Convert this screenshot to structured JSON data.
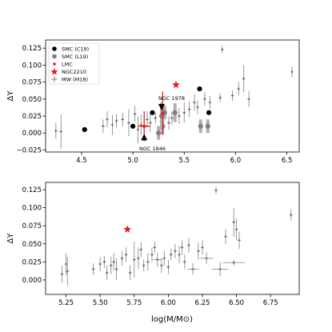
{
  "figure": {
    "background": "#ffffff",
    "colors": {
      "smc_c19": "#000000",
      "smc_l19": "#808080",
      "lmc": "#e41a1c",
      "ngc2210": "#e41a1c",
      "mw_m18": "#7f7f7f"
    }
  },
  "chart_data": [
    {
      "type": "scatter",
      "xlabel": "",
      "ylabel": "ΔY",
      "xlim": [
        4.15,
        6.62
      ],
      "ylim": [
        -0.028,
        0.137
      ],
      "xticks": [
        4.5,
        5.0,
        5.5,
        6.0,
        6.5
      ],
      "xtick_labels": [
        "4.5",
        "5.0",
        "5.5",
        "6.0",
        "6.5"
      ],
      "yticks": [
        -0.025,
        0.0,
        0.025,
        0.05,
        0.075,
        0.1,
        0.125
      ],
      "ytick_labels": [
        "−0.025",
        "0.000",
        "0.025",
        "0.050",
        "0.075",
        "0.100",
        "0.125"
      ],
      "grid": false,
      "legend": {
        "position": "upper-left",
        "entries": [
          {
            "label": "SMC (C19)",
            "marker": "circle",
            "color": "#000000"
          },
          {
            "label": "SMC (L19)",
            "marker": "circle",
            "color": "#808080"
          },
          {
            "label": "LMC",
            "marker": "dot",
            "color": "#e41a1c"
          },
          {
            "label": "NGC2210",
            "marker": "star",
            "color": "#e41a1c"
          },
          {
            "label": "MW (M18)",
            "marker": "plus",
            "color": "#7f7f7f"
          }
        ]
      },
      "annotations": [
        {
          "text": "NGC 1978",
          "x": 5.33,
          "y": 0.034
        },
        {
          "text": "NGC 1846",
          "x": 5.11,
          "y": -0.013
        }
      ],
      "series": [
        {
          "name": "SMC (C19)",
          "points": [
            {
              "x": 4.53,
              "y": 0.005
            },
            {
              "x": 5.0,
              "y": 0.01
            },
            {
              "x": 5.19,
              "y": 0.03
            },
            {
              "x": 5.65,
              "y": 0.065
            },
            {
              "x": 5.74,
              "y": 0.03
            }
          ]
        },
        {
          "name": "SMC (L19)",
          "points": [
            {
              "x": 5.25,
              "y": 0.0,
              "yerr": 0.01
            },
            {
              "x": 5.29,
              "y": 0.01,
              "yerr": 0.012
            },
            {
              "x": 5.31,
              "y": 0.03,
              "yerr": 0.01
            },
            {
              "x": 5.41,
              "y": 0.03,
              "yerr": 0.014
            },
            {
              "x": 5.66,
              "y": 0.01,
              "yerr": 0.01
            },
            {
              "x": 5.73,
              "y": 0.01,
              "yerr": 0.01
            },
            {
              "x": 5.28,
              "y": 0.025,
              "yerr": 0.02
            }
          ]
        },
        {
          "name": "LMC",
          "points": [
            {
              "x": 5.11,
              "y": 0.01,
              "xerr": 0.06,
              "yerr": 0.022
            },
            {
              "x": 5.29,
              "y": 0.029,
              "yerr": 0.032
            }
          ]
        },
        {
          "name": "NGC2210",
          "points": [
            {
              "x": 5.42,
              "y": 0.071
            }
          ]
        },
        {
          "name": "MW (M18)",
          "points": [
            {
              "x": 4.25,
              "y": 0.003,
              "yerr": 0.012
            },
            {
              "x": 4.3,
              "y": 0.002,
              "yerr": 0.025
            },
            {
              "x": 4.71,
              "y": 0.01,
              "yerr": 0.01
            },
            {
              "x": 4.75,
              "y": 0.02,
              "yerr": 0.012
            },
            {
              "x": 4.8,
              "y": 0.012,
              "yerr": 0.015
            },
            {
              "x": 4.84,
              "y": 0.018,
              "yerr": 0.01
            },
            {
              "x": 4.9,
              "y": 0.02,
              "yerr": 0.01
            },
            {
              "x": 4.96,
              "y": 0.015,
              "yerr": 0.02
            },
            {
              "x": 5.02,
              "y": 0.028,
              "yerr": 0.012
            },
            {
              "x": 5.05,
              "y": 0.005,
              "yerr": 0.02
            },
            {
              "x": 5.08,
              "y": 0.012,
              "yerr": 0.015
            },
            {
              "x": 5.14,
              "y": 0.02,
              "yerr": 0.012
            },
            {
              "x": 5.17,
              "y": 0.015,
              "yerr": 0.014
            },
            {
              "x": 5.22,
              "y": 0.022,
              "yerr": 0.008
            },
            {
              "x": 5.35,
              "y": 0.015,
              "yerr": 0.01
            },
            {
              "x": 5.38,
              "y": 0.022,
              "yerr": 0.01
            },
            {
              "x": 5.45,
              "y": 0.025,
              "yerr": 0.012
            },
            {
              "x": 5.5,
              "y": 0.03,
              "yerr": 0.015
            },
            {
              "x": 5.55,
              "y": 0.035,
              "yerr": 0.012
            },
            {
              "x": 5.6,
              "y": 0.045,
              "yerr": 0.012
            },
            {
              "x": 5.63,
              "y": 0.038,
              "yerr": 0.01
            },
            {
              "x": 5.7,
              "y": 0.05,
              "yerr": 0.01
            },
            {
              "x": 5.75,
              "y": 0.045,
              "yerr": 0.01
            },
            {
              "x": 5.85,
              "y": 0.052,
              "yerr": 0.006
            },
            {
              "x": 5.87,
              "y": 0.123,
              "yerr": 0.005
            },
            {
              "x": 5.97,
              "y": 0.055,
              "yerr": 0.008
            },
            {
              "x": 6.03,
              "y": 0.065,
              "yerr": 0.01
            },
            {
              "x": 6.08,
              "y": 0.08,
              "yerr": 0.02
            },
            {
              "x": 6.13,
              "y": 0.05,
              "yerr": 0.012
            },
            {
              "x": 6.55,
              "y": 0.09,
              "yerr": 0.008
            }
          ]
        }
      ]
    },
    {
      "type": "scatter",
      "xlabel": "log(M/M⊙)",
      "ylabel": "ΔY",
      "xlim": [
        5.1,
        6.96
      ],
      "ylim": [
        -0.02,
        0.135
      ],
      "xticks": [
        5.25,
        5.5,
        5.75,
        6.0,
        6.25,
        6.5,
        6.75
      ],
      "xtick_labels": [
        "5.25",
        "5.50",
        "5.75",
        "6.00",
        "6.25",
        "6.50",
        "6.75"
      ],
      "yticks": [
        0.0,
        0.025,
        0.05,
        0.075,
        0.1,
        0.125
      ],
      "ytick_labels": [
        "0.000",
        "0.025",
        "0.050",
        "0.075",
        "0.100",
        "0.125"
      ],
      "grid": false,
      "series": [
        {
          "name": "NGC2210",
          "points": [
            {
              "x": 5.7,
              "y": 0.07
            }
          ]
        },
        {
          "name": "MW (M18)",
          "points": [
            {
              "x": 5.22,
              "y": 0.008,
              "yerr": 0.012
            },
            {
              "x": 5.25,
              "y": 0.022,
              "yerr": 0.015
            },
            {
              "x": 5.26,
              "y": 0.012,
              "yerr": 0.02
            },
            {
              "x": 5.45,
              "y": 0.015,
              "yerr": 0.008
            },
            {
              "x": 5.5,
              "y": 0.022,
              "yerr": 0.01
            },
            {
              "x": 5.53,
              "y": 0.025,
              "yerr": 0.008
            },
            {
              "x": 5.55,
              "y": 0.01,
              "yerr": 0.01
            },
            {
              "x": 5.58,
              "y": 0.02,
              "yerr": 0.012
            },
            {
              "x": 5.6,
              "y": 0.025,
              "yerr": 0.012
            },
            {
              "x": 5.62,
              "y": 0.015,
              "yerr": 0.015
            },
            {
              "x": 5.66,
              "y": 0.03,
              "yerr": 0.01
            },
            {
              "x": 5.69,
              "y": 0.035,
              "yerr": 0.01
            },
            {
              "x": 5.72,
              "y": 0.01,
              "yerr": 0.01
            },
            {
              "x": 5.75,
              "y": 0.028,
              "yerr": 0.025
            },
            {
              "x": 5.78,
              "y": 0.03,
              "yerr": 0.015
            },
            {
              "x": 5.8,
              "y": 0.042,
              "yerr": 0.01
            },
            {
              "x": 5.82,
              "y": 0.02,
              "yerr": 0.008
            },
            {
              "x": 5.85,
              "y": 0.025,
              "yerr": 0.012
            },
            {
              "x": 5.88,
              "y": 0.035,
              "yerr": 0.01
            },
            {
              "x": 5.9,
              "y": 0.045,
              "yerr": 0.008
            },
            {
              "x": 5.92,
              "y": 0.028,
              "yerr": 0.01,
              "xerr": 0.03
            },
            {
              "x": 5.95,
              "y": 0.02,
              "yerr": 0.01
            },
            {
              "x": 5.97,
              "y": 0.03,
              "yerr": 0.01
            },
            {
              "x": 6.0,
              "y": 0.018,
              "yerr": 0.01
            },
            {
              "x": 6.02,
              "y": 0.035,
              "yerr": 0.008
            },
            {
              "x": 6.05,
              "y": 0.04,
              "yerr": 0.01
            },
            {
              "x": 6.08,
              "y": 0.035,
              "yerr": 0.012
            },
            {
              "x": 6.1,
              "y": 0.045,
              "yerr": 0.01
            },
            {
              "x": 6.12,
              "y": 0.025,
              "yerr": 0.01
            },
            {
              "x": 6.15,
              "y": 0.048,
              "yerr": 0.01
            },
            {
              "x": 6.18,
              "y": 0.015,
              "yerr": 0.008,
              "xerr": 0.04
            },
            {
              "x": 6.22,
              "y": 0.04,
              "yerr": 0.012
            },
            {
              "x": 6.25,
              "y": 0.045,
              "yerr": 0.01
            },
            {
              "x": 6.28,
              "y": 0.03,
              "yerr": 0.008,
              "xerr": 0.05
            },
            {
              "x": 6.35,
              "y": 0.124,
              "yerr": 0.005
            },
            {
              "x": 6.38,
              "y": 0.015,
              "yerr": 0.01,
              "xerr": 0.06
            },
            {
              "x": 6.42,
              "y": 0.06,
              "yerr": 0.01
            },
            {
              "x": 6.48,
              "y": 0.08,
              "yerr": 0.02
            },
            {
              "x": 6.5,
              "y": 0.07,
              "yerr": 0.015
            },
            {
              "x": 6.52,
              "y": 0.055,
              "yerr": 0.012
            },
            {
              "x": 6.48,
              "y": 0.024,
              "yerr": 0.004,
              "xerr": 0.08
            },
            {
              "x": 6.9,
              "y": 0.09,
              "yerr": 0.008
            }
          ]
        }
      ]
    }
  ]
}
